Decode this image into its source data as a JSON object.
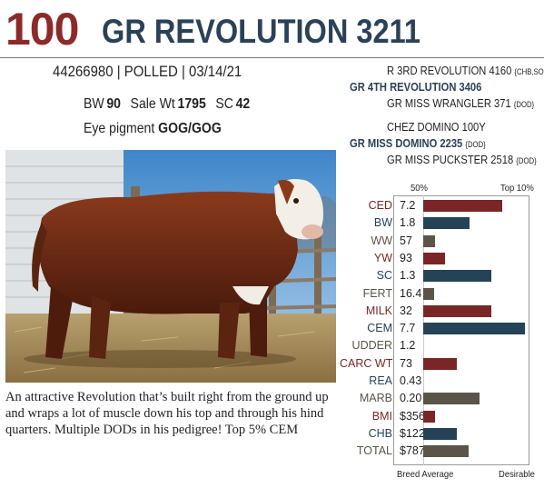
{
  "header": {
    "lot": "100",
    "name": "GR REVOLUTION 3211"
  },
  "info": {
    "line": "44266980 | POLLED | 03/14/21"
  },
  "stats": {
    "bw_label": "BW",
    "bw": "90",
    "sale_label": "Sale Wt",
    "sale": "1795",
    "sc_label": "SC",
    "sc": "42"
  },
  "pigment": {
    "label": "Eye pigment",
    "value": "GOG/GOG"
  },
  "pedigree": {
    "sss": "R 3RD REVOLUTION 4160",
    "sss_tag": "{CHB,SOD}",
    "sire": "GR 4TH REVOLUTION 3406",
    "ssd": "GR MISS WRANGLER 371",
    "ssd_tag": "{DOD}",
    "dds": "CHEZ DOMINO 100Y",
    "dam": "GR MISS DOMINO 2235",
    "dam_tag": "{DOD}",
    "ddd": "GR MISS PUCKSTER 2518",
    "ddd_tag": "{DOD}"
  },
  "description": "An attractive Revolution that’s built right from the ground up and wraps a lot of muscle down his top and through his hind quarters. Multiple DODs in his pedigree! Top 5% CEM",
  "chart_data": {
    "type": "bar",
    "header_left": "50%",
    "header_right": "Top 10%",
    "footer_left": "Breed Average",
    "footer_right": "Desirable",
    "colors": {
      "maternal": "#7a2626",
      "growth": "#264256",
      "carcass": "#5a5548"
    },
    "rows": [
      {
        "label": "CED",
        "value": "7.2",
        "level": 0.79,
        "color": "maternal"
      },
      {
        "label": "BW",
        "value": "1.8",
        "level": 0.46,
        "color": "growth"
      },
      {
        "label": "WW",
        "value": "57",
        "level": 0.12,
        "color": "carcass"
      },
      {
        "label": "YW",
        "value": "93",
        "level": 0.22,
        "color": "maternal"
      },
      {
        "label": "SC",
        "value": "1.3",
        "level": 0.68,
        "color": "growth"
      },
      {
        "label": "FERT",
        "value": "16.4",
        "level": 0.11,
        "color": "carcass"
      },
      {
        "label": "MILK",
        "value": "32",
        "level": 0.68,
        "color": "maternal"
      },
      {
        "label": "CEM",
        "value": "7.7",
        "level": 1.02,
        "color": "growth"
      },
      {
        "label": "UDDER",
        "value": "1.2",
        "level": 0,
        "color": "carcass"
      },
      {
        "label": "CARC WT",
        "value": "73",
        "level": 0.34,
        "color": "maternal"
      },
      {
        "label": "REA",
        "value": "0.43",
        "level": 0,
        "color": "growth"
      },
      {
        "label": "MARB",
        "value": "0.20",
        "level": 0.56,
        "color": "carcass"
      },
      {
        "label": "BMI",
        "value": "$356",
        "level": 0.12,
        "color": "maternal"
      },
      {
        "label": "CHB",
        "value": "$122",
        "level": 0.34,
        "color": "growth"
      },
      {
        "label": "TOTAL",
        "value": "$787",
        "level": 0.45,
        "color": "carcass"
      }
    ]
  }
}
